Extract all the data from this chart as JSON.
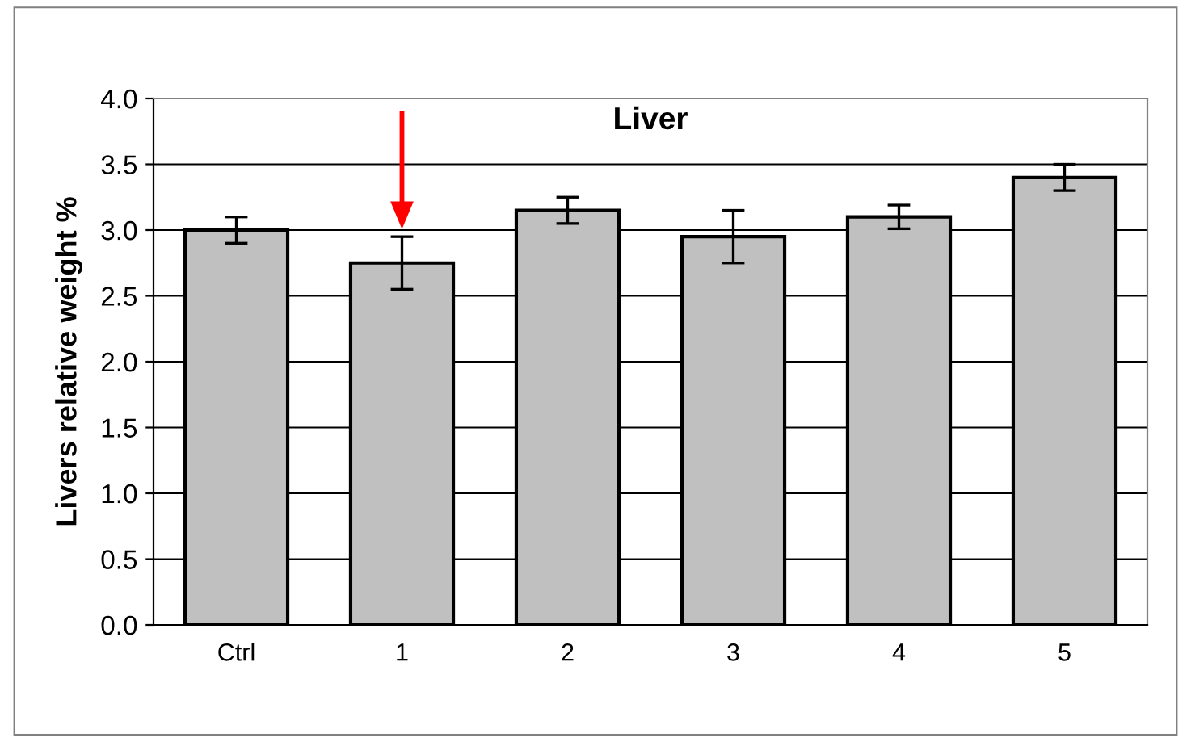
{
  "chart_data": {
    "type": "bar",
    "title": "Liver",
    "ylabel": "Livers relative weight %",
    "categories": [
      "Ctrl",
      "1",
      "2",
      "3",
      "4",
      "5"
    ],
    "values": [
      3.0,
      2.75,
      3.15,
      2.95,
      3.1,
      3.4
    ],
    "errors": [
      0.1,
      0.2,
      0.1,
      0.2,
      0.09,
      0.1
    ],
    "color": "#c0c0c0",
    "ylim": [
      0,
      4.0
    ],
    "yticks": [
      {
        "value": 0,
        "label": "0.0"
      },
      {
        "value": 0.5,
        "label": "0.5"
      },
      {
        "value": 1.0,
        "label": "1.0"
      },
      {
        "value": 1.5,
        "label": "1.5"
      },
      {
        "value": 2.0,
        "label": "2.0"
      },
      {
        "value": 2.5,
        "label": "2.5"
      },
      {
        "value": 3.0,
        "label": "3.0"
      },
      {
        "value": 3.5,
        "label": "3.5"
      },
      {
        "value": 4.0,
        "label": "4.0"
      }
    ],
    "grid": "y"
  }
}
